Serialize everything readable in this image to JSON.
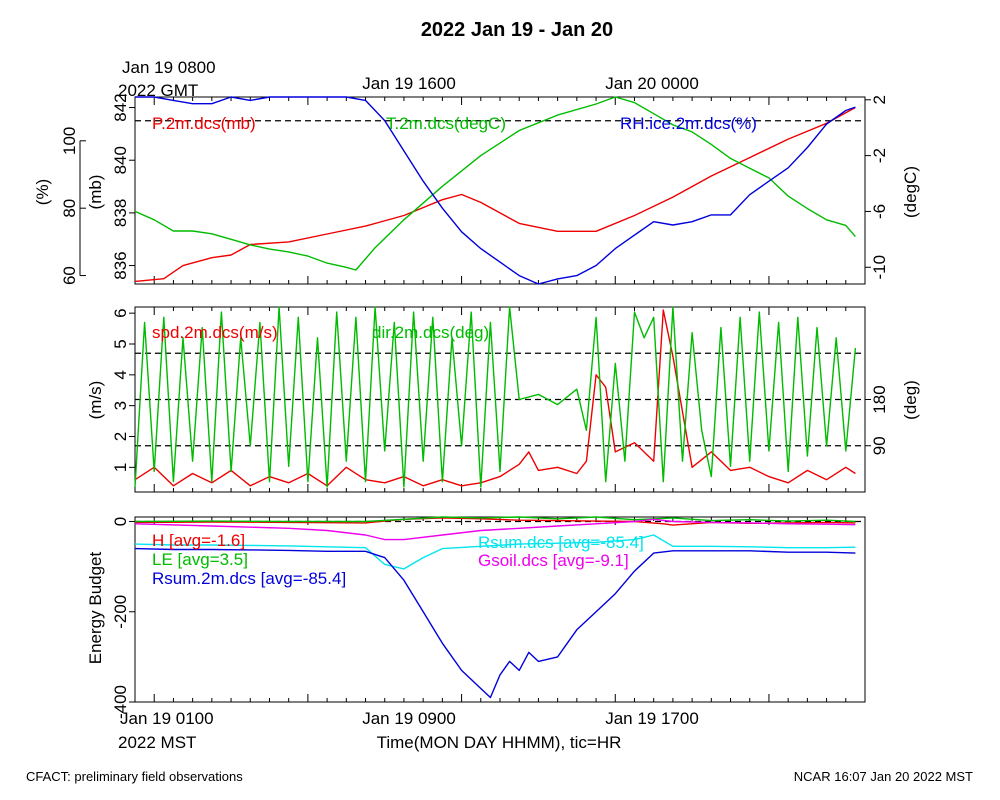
{
  "title": "2022 Jan 19 - Jan 20",
  "top_time_labels": {
    "first_line1": "Jan 19 0800",
    "first_line2": "2022 GMT",
    "second": "Jan 19 1600",
    "third": "Jan 20 0000"
  },
  "bottom_time_labels": {
    "first": "Jan 19 0100",
    "first_line2": "2022 MST",
    "second": "Jan 19 0900",
    "third": "Jan 19 1700",
    "axis_title": "Time(MON DAY HHMM), tic=HR"
  },
  "footer": {
    "left": "CFACT: preliminary field observations",
    "right": "NCAR 16:07 Jan 20 2022 MST"
  },
  "colors": {
    "red": "#ee0000",
    "green": "#00bb00",
    "blue": "#0000dd",
    "cyan": "#00e5ee",
    "magenta": "#ee00ee"
  },
  "chart_data": [
    {
      "type": "line",
      "panel": "top",
      "x_unit": "hours since Jan 19 0000 MST",
      "xlim": [
        0,
        38
      ],
      "axes": {
        "left_outer": {
          "label": "(%)",
          "ticks": [
            60,
            80,
            100
          ],
          "ylim": [
            57.5,
            113
          ]
        },
        "left_inner": {
          "label": "(mb)",
          "ticks": [
            836,
            838,
            840,
            842
          ],
          "ylim": [
            835.3,
            842.4
          ]
        },
        "right": {
          "label": "(degC)",
          "ticks": [
            -10,
            -6,
            -2,
            2
          ],
          "ylim": [
            -11.2,
            2.2
          ]
        }
      },
      "reference_lines": [
        {
          "axis": "right",
          "value": 0.5
        }
      ],
      "series": [
        {
          "name": "P.2m.dcs(mb)",
          "color": "red",
          "axis": "left_inner",
          "x": [
            0,
            1.5,
            2.5,
            4,
            5,
            6,
            8,
            10,
            12,
            14,
            16,
            17,
            18,
            19,
            20,
            22,
            24,
            26,
            28,
            30,
            32,
            34,
            36,
            37.5
          ],
          "values": [
            835.4,
            835.5,
            836.0,
            836.3,
            836.4,
            836.8,
            836.9,
            837.2,
            837.5,
            837.9,
            838.5,
            838.7,
            838.4,
            838.0,
            837.6,
            837.3,
            837.3,
            837.9,
            838.6,
            839.4,
            840.1,
            840.8,
            841.4,
            842.0
          ]
        },
        {
          "name": "T.2m.dcs(degC)",
          "color": "green",
          "axis": "right",
          "x": [
            0,
            1,
            2,
            3,
            4,
            5,
            6,
            7,
            8,
            9,
            10,
            11,
            11.5,
            12.5,
            14,
            16,
            18,
            20,
            22,
            24,
            25,
            26,
            27,
            28,
            29,
            30,
            31,
            32,
            33,
            34,
            35,
            36,
            37,
            37.5
          ],
          "values": [
            -6.0,
            -6.6,
            -7.4,
            -7.4,
            -7.6,
            -8.0,
            -8.4,
            -8.7,
            -8.9,
            -9.2,
            -9.7,
            -10.0,
            -10.2,
            -8.6,
            -6.6,
            -4.2,
            -2.0,
            -0.2,
            0.9,
            1.7,
            2.3,
            1.8,
            1.0,
            0.2,
            -0.3,
            -1.2,
            -2.2,
            -2.9,
            -3.6,
            -4.9,
            -5.8,
            -6.6,
            -7.0,
            -7.8
          ]
        },
        {
          "name": "RH.ice.2m.dcs(%)",
          "color": "blue",
          "axis": "left_outer",
          "x": [
            0,
            1,
            2,
            3,
            4,
            5,
            6,
            7,
            8,
            9,
            10,
            11,
            12,
            13,
            14,
            15,
            16,
            17,
            18,
            19,
            20,
            21,
            22,
            23,
            24,
            25,
            26,
            27,
            28,
            29,
            30,
            31,
            32,
            33,
            34,
            35,
            36,
            37,
            37.5
          ],
          "values": [
            113,
            113,
            112,
            111,
            111,
            113,
            112,
            113,
            113,
            113,
            113,
            113,
            112,
            106,
            97,
            88,
            80,
            73,
            68,
            64,
            60,
            57.5,
            59,
            60,
            63,
            68,
            72,
            76,
            75,
            76,
            78,
            78,
            84,
            88,
            92,
            98,
            105,
            109,
            110
          ]
        }
      ]
    },
    {
      "type": "line",
      "panel": "middle",
      "x_unit": "hours since Jan 19 0000 MST",
      "xlim": [
        0,
        38
      ],
      "axes": {
        "left": {
          "label": "(m/s)",
          "ticks": [
            1,
            2,
            3,
            4,
            5,
            6
          ],
          "ylim": [
            0.2,
            6.2
          ]
        },
        "right": {
          "label": "(deg)",
          "ticks": [
            90,
            180
          ],
          "ylim": [
            0,
            360
          ]
        }
      },
      "reference_lines": [
        {
          "axis": "right",
          "value": 90
        },
        {
          "axis": "right",
          "value": 180
        },
        {
          "axis": "right",
          "value": 270
        }
      ],
      "series": [
        {
          "name": "spd.2m.dcs(m/s)",
          "color": "red",
          "axis": "left",
          "x": [
            0,
            1,
            2,
            3,
            4,
            5,
            6,
            7,
            8,
            9,
            10,
            11,
            12,
            13,
            14,
            15,
            16,
            17,
            18,
            19,
            20,
            20.5,
            21,
            22,
            23,
            23.5,
            24,
            24.5,
            25,
            26,
            27,
            27.5,
            28,
            29,
            30,
            31,
            32,
            33,
            34,
            35,
            36,
            37,
            37.5
          ],
          "values": [
            0.6,
            1.0,
            0.4,
            0.8,
            0.5,
            0.9,
            0.4,
            0.7,
            0.5,
            0.8,
            0.4,
            1.0,
            0.6,
            0.5,
            0.7,
            0.4,
            0.6,
            0.4,
            0.5,
            0.7,
            1.1,
            1.5,
            0.9,
            1.0,
            0.8,
            1.2,
            4.0,
            3.6,
            1.5,
            1.8,
            1.2,
            6.1,
            4.6,
            1.0,
            1.5,
            0.9,
            1.0,
            0.7,
            0.5,
            0.9,
            0.6,
            1.0,
            0.8
          ]
        },
        {
          "name": "dir.2m.dcs(deg)",
          "color": "green",
          "axis": "right",
          "x": [
            0,
            0.5,
            1,
            1.5,
            2,
            2.5,
            3,
            3.5,
            4,
            4.5,
            5,
            5.5,
            6,
            6.5,
            7,
            7.5,
            8,
            8.5,
            9,
            9.5,
            10,
            10.5,
            11,
            11.5,
            12,
            12.5,
            13,
            13.5,
            14,
            14.5,
            15,
            15.5,
            16,
            16.5,
            17,
            17.5,
            18,
            18.5,
            19,
            19.5,
            20,
            21,
            22,
            23,
            23.5,
            24,
            24.5,
            25,
            25.5,
            26,
            26.5,
            27,
            27.5,
            28,
            28.5,
            29,
            29.5,
            30,
            30.5,
            31,
            31.5,
            32,
            32.5,
            33,
            33.5,
            34,
            34.5,
            35,
            35.5,
            36,
            36.5,
            37,
            37.5
          ],
          "values": [
            10,
            330,
            40,
            340,
            20,
            300,
            60,
            320,
            20,
            350,
            40,
            300,
            90,
            330,
            20,
            360,
            50,
            340,
            20,
            300,
            10,
            350,
            60,
            340,
            20,
            360,
            80,
            330,
            10,
            350,
            60,
            340,
            20,
            300,
            90,
            350,
            10,
            330,
            40,
            360,
            180,
            190,
            170,
            200,
            120,
            340,
            20,
            250,
            60,
            350,
            300,
            340,
            20,
            360,
            60,
            310,
            120,
            30,
            320,
            50,
            340,
            60,
            350,
            80,
            330,
            40,
            340,
            70,
            320,
            90,
            300,
            80,
            280
          ]
        }
      ]
    },
    {
      "type": "line",
      "panel": "bottom",
      "x_unit": "hours since Jan 19 0000 MST",
      "xlim": [
        0,
        38
      ],
      "axes": {
        "left": {
          "label": "Energy Budget",
          "ticks": [
            -400,
            -200,
            0
          ],
          "ylim": [
            -400,
            10
          ]
        }
      },
      "reference_lines": [
        {
          "axis": "left",
          "value": 0
        }
      ],
      "series": [
        {
          "name": "H",
          "legend": "H [avg=-1.6]",
          "color": "red",
          "x": [
            0,
            4,
            8,
            12,
            14,
            16,
            18,
            20,
            22,
            24,
            26,
            27.5,
            28,
            30,
            32,
            34,
            36,
            37.5
          ],
          "values": [
            -2,
            -1,
            -2,
            -3,
            5,
            8,
            6,
            3,
            2,
            1,
            0,
            -5,
            -8,
            -2,
            -4,
            -3,
            -2,
            -3
          ]
        },
        {
          "name": "LE",
          "legend": "LE [avg=3.5]",
          "color": "green",
          "x": [
            0,
            4,
            8,
            12,
            14,
            16,
            18,
            20,
            22,
            24,
            26,
            28,
            30,
            32,
            34,
            36,
            37.5
          ],
          "values": [
            0,
            1,
            0,
            0,
            5,
            10,
            8,
            12,
            6,
            10,
            4,
            8,
            2,
            4,
            1,
            3,
            0
          ]
        },
        {
          "name": "Rsum.dcs",
          "legend": "Rsum.dcs [avg=-85.4]",
          "color": "cyan",
          "x": [
            0,
            2,
            4,
            6,
            8,
            10,
            12,
            13,
            14,
            15,
            16,
            18,
            20,
            22,
            24,
            26,
            27,
            28,
            30,
            32,
            34,
            36,
            37.5
          ],
          "values": [
            -50,
            -52,
            -52,
            -53,
            -54,
            -56,
            -58,
            -95,
            -105,
            -80,
            -60,
            -55,
            -50,
            -48,
            -46,
            -40,
            -30,
            -55,
            -55,
            -56,
            -58,
            -58,
            -57
          ]
        },
        {
          "name": "Gsoil.dcs",
          "legend": "Gsoil.dcs [avg=-9.1]",
          "color": "magenta",
          "x": [
            0,
            4,
            8,
            10,
            12,
            13,
            14,
            16,
            18,
            20,
            22,
            24,
            26,
            27,
            28,
            30,
            32,
            34,
            36,
            37.5
          ],
          "values": [
            -5,
            -10,
            -15,
            -20,
            -30,
            -40,
            -40,
            -30,
            -20,
            -15,
            -10,
            -5,
            0,
            5,
            0,
            -2,
            -3,
            -5,
            -6,
            -7
          ]
        },
        {
          "name": "Rsum.2m.dcs",
          "legend": "Rsum.2m.dcs [avg=-85.4]",
          "color": "blue",
          "x": [
            0,
            2,
            4,
            6,
            8,
            10,
            12,
            13,
            14,
            15,
            16,
            17,
            18,
            18.5,
            19,
            19.5,
            20,
            20.5,
            21,
            22,
            22.5,
            23,
            24,
            25,
            26,
            27,
            28,
            30,
            32,
            34,
            36,
            37.5
          ],
          "values": [
            -60,
            -62,
            -62,
            -63,
            -64,
            -66,
            -66,
            -80,
            -130,
            -200,
            -270,
            -330,
            -370,
            -390,
            -340,
            -310,
            -330,
            -290,
            -310,
            -300,
            -270,
            -240,
            -200,
            -160,
            -110,
            -70,
            -65,
            -65,
            -65,
            -68,
            -68,
            -70
          ]
        }
      ]
    }
  ]
}
